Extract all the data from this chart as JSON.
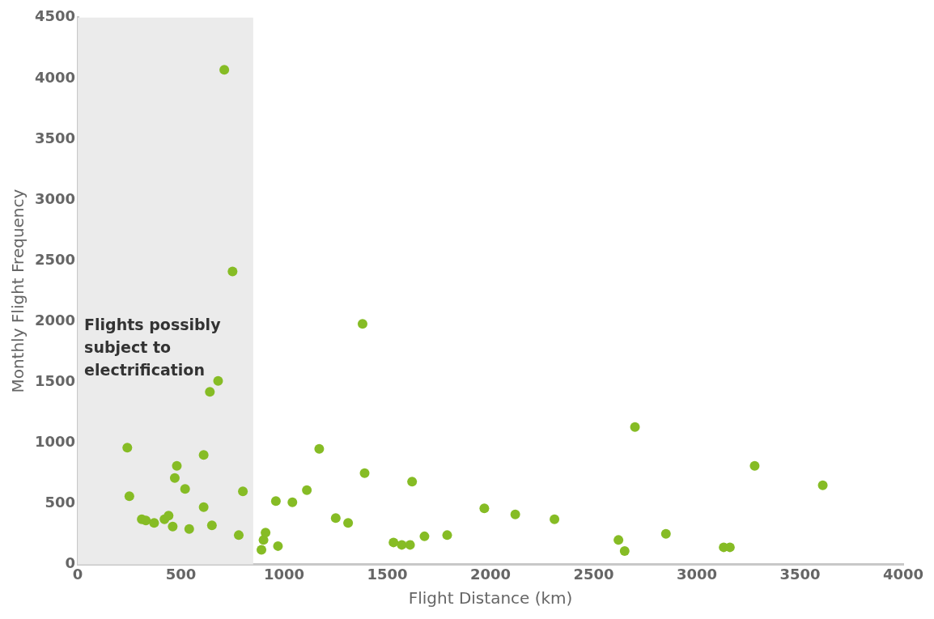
{
  "chart_data": {
    "type": "scatter",
    "xlabel": "Flight Distance (km)",
    "ylabel": "Monthly Flight Frequency",
    "x": [
      240,
      250,
      310,
      330,
      370,
      420,
      440,
      460,
      480,
      470,
      520,
      540,
      610,
      610,
      650,
      640,
      680,
      710,
      750,
      780,
      800,
      890,
      900,
      910,
      960,
      970,
      1040,
      1110,
      1170,
      1250,
      1310,
      1380,
      1390,
      1530,
      1570,
      1610,
      1620,
      1680,
      1790,
      1970,
      2120,
      2310,
      2620,
      2650,
      2700,
      2850,
      3130,
      3160,
      3280,
      3610
    ],
    "series": [
      {
        "color": "#86bc25",
        "values": [
          960,
          560,
          370,
          360,
          340,
          370,
          400,
          310,
          810,
          710,
          620,
          290,
          470,
          900,
          320,
          1420,
          1510,
          4070,
          2410,
          240,
          600,
          120,
          200,
          260,
          520,
          150,
          510,
          610,
          950,
          380,
          340,
          1980,
          750,
          180,
          160,
          160,
          680,
          230,
          240,
          460,
          410,
          370,
          200,
          110,
          1130,
          250,
          140,
          140,
          810,
          650
        ]
      }
    ],
    "xlim": [
      0,
      4000
    ],
    "xticks": [
      0,
      500,
      1000,
      1500,
      2000,
      2500,
      3000,
      3500,
      4000
    ],
    "ylim": [
      0,
      4500
    ],
    "yticks": [
      0,
      500,
      1000,
      1500,
      2000,
      2500,
      3000,
      3500,
      4000,
      4500
    ],
    "grid": false,
    "legend": false,
    "marker": "circle",
    "bands": [
      {
        "axis": "x",
        "from": 0,
        "to": 850,
        "label": "Flights possibly subject to electrification",
        "color": "#ebebeb"
      }
    ]
  }
}
